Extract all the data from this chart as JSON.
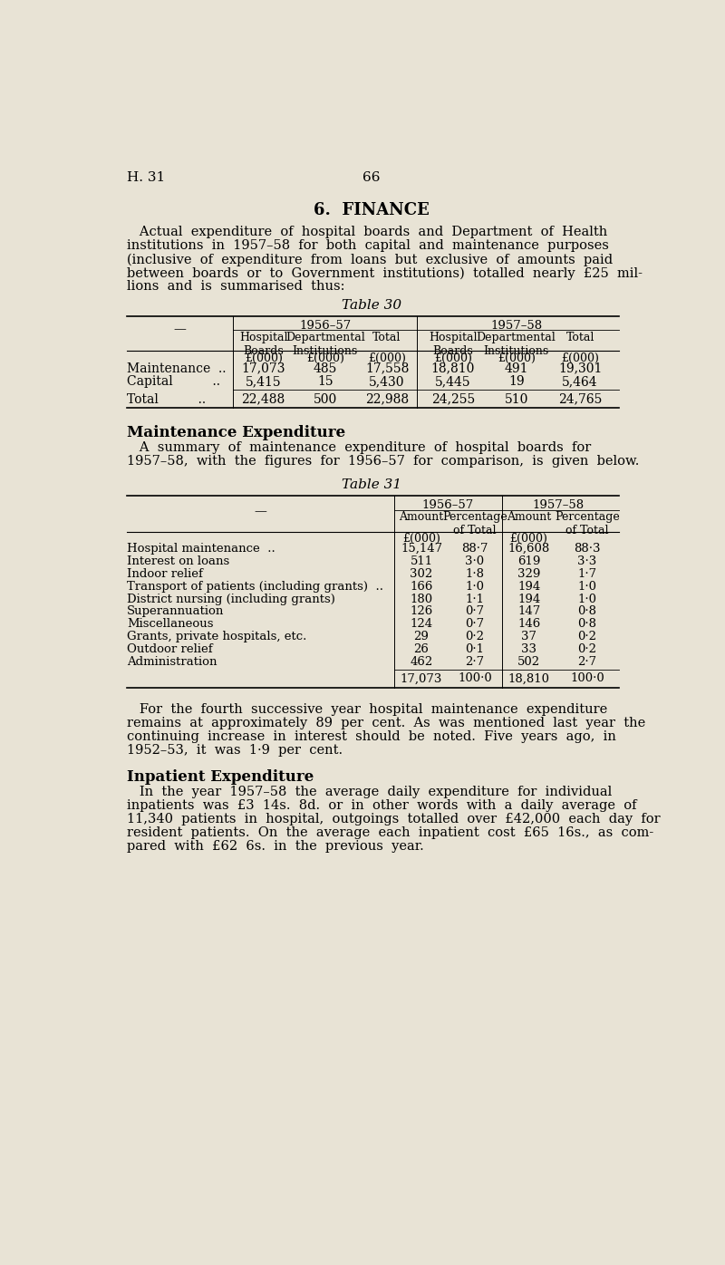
{
  "bg_color": "#e8e3d5",
  "header_left": "H. 31",
  "header_center": "66",
  "section_title": "6.  FINANCE",
  "intro_lines": [
    "   Actual  expenditure  of  hospital  boards  and  Department  of  Health",
    "institutions  in  1957–58  for  both  capital  and  maintenance  purposes",
    "(inclusive  of  expenditure  from  loans  but  exclusive  of  amounts  paid",
    "between  boards  or  to  Government  institutions)  totalled  nearly  £25  mil-",
    "lions  and  is  summarised  thus:"
  ],
  "table30_title": "Table 30",
  "table30_year_headers": [
    "1956–57",
    "1957–58"
  ],
  "table30_sub_headers": [
    "Hospital\nBoards",
    "Departmental\nInstitutions",
    "Total",
    "Hospital\nBoards",
    "Departmental\nInstitutions",
    "Total"
  ],
  "table30_units": [
    "£(000)",
    "£(000)",
    "£(000)",
    "£(000)",
    "£(000)",
    "£(000)"
  ],
  "table30_data": [
    [
      "Maintenance  ..",
      "17,073",
      "485",
      "17,558",
      "18,810",
      "491",
      "19,301"
    ],
    [
      "Capital          ..",
      "5,415",
      "15",
      "5,430",
      "5,445",
      "19",
      "5,464"
    ]
  ],
  "table30_total": [
    "Total          ..",
    "22,488",
    "500",
    "22,988",
    "24,255",
    "510",
    "24,765"
  ],
  "maint_heading": "Maintenance Expenditure",
  "maint_text": [
    "   A  summary  of  maintenance  expenditure  of  hospital  boards  for",
    "1957–58,  with  the  figures  for  1956–57  for  comparison,  is  given  below."
  ],
  "table31_title": "Table 31",
  "table31_year_headers": [
    "1956–57",
    "1957–58"
  ],
  "table31_sub_headers": [
    "Amount",
    "Percentage\nof Total",
    "Amount",
    "Percentage\nof Total"
  ],
  "table31_units": [
    "£(000)",
    "",
    "£(000)",
    ""
  ],
  "table31_data": [
    [
      "Hospital maintenance  ..\t..\t..",
      "15,147",
      "88·7",
      "16,608",
      "88·3"
    ],
    [
      "Interest on loans\t..\t..\t..",
      "511",
      "3·0",
      "619",
      "3·3"
    ],
    [
      "Indoor relief\t..\t..\t..",
      "302",
      "1·8",
      "329",
      "1·7"
    ],
    [
      "Transport of patients (including grants)  ..",
      "166",
      "1·0",
      "194",
      "1·0"
    ],
    [
      "District nursing (including grants)\t..",
      "180",
      "1·1",
      "194",
      "1·0"
    ],
    [
      "Superannuation\t..\t..\t..",
      "126",
      "0·7",
      "147",
      "0·8"
    ],
    [
      "Miscellaneous\t..\t..\t..",
      "124",
      "0·7",
      "146",
      "0·8"
    ],
    [
      "Grants, private hospitals, etc.\t..\t..",
      "29",
      "0·2",
      "37",
      "0·2"
    ],
    [
      "Outdoor relief\t..\t..\t..",
      "26",
      "0·1",
      "33",
      "0·2"
    ],
    [
      "Administration\t..\t..\t..",
      "462",
      "2·7",
      "502",
      "2·7"
    ]
  ],
  "table31_row_labels": [
    "Hospital maintenance  ..",
    "Interest on loans",
    "Indoor relief",
    "Transport of patients (including grants)  ..",
    "District nursing (including grants)",
    "Superannuation",
    "Miscellaneous",
    "Grants, private hospitals, etc.",
    "Outdoor relief",
    "Administration"
  ],
  "table31_values": [
    [
      "15,147",
      "88·7",
      "16,608",
      "88·3"
    ],
    [
      "511",
      "3·0",
      "619",
      "3·3"
    ],
    [
      "302",
      "1·8",
      "329",
      "1·7"
    ],
    [
      "166",
      "1·0",
      "194",
      "1·0"
    ],
    [
      "180",
      "1·1",
      "194",
      "1·0"
    ],
    [
      "126",
      "0·7",
      "147",
      "0·8"
    ],
    [
      "124",
      "0·7",
      "146",
      "0·8"
    ],
    [
      "29",
      "0·2",
      "37",
      "0·2"
    ],
    [
      "26",
      "0·1",
      "33",
      "0·2"
    ],
    [
      "462",
      "2·7",
      "502",
      "2·7"
    ]
  ],
  "table31_total": [
    "17,073",
    "100·0",
    "18,810",
    "100·0"
  ],
  "para3_lines": [
    "   For  the  fourth  successive  year  hospital  maintenance  expenditure",
    "remains  at  approximately  89  per  cent.  As  was  mentioned  last  year  the",
    "continuing  increase  in  interest  should  be  noted.  Five  years  ago,  in",
    "1952–53,  it  was  1·9  per  cent."
  ],
  "inpatient_heading": "Inpatient Expenditure",
  "inpatient_lines": [
    "   In  the  year  1957–58  the  average  daily  expenditure  for  individual",
    "inpatients  was  £3  14s.  8d.  or  in  other  words  with  a  daily  average  of",
    "11,340  patients  in  hospital,  outgoings  totalled  over  £42,000  each  day  for",
    "resident  patients.  On  the  average  each  inpatient  cost  £65  16s.,  as  com-",
    "pared  with  £62  6s.  in  the  previous  year."
  ]
}
